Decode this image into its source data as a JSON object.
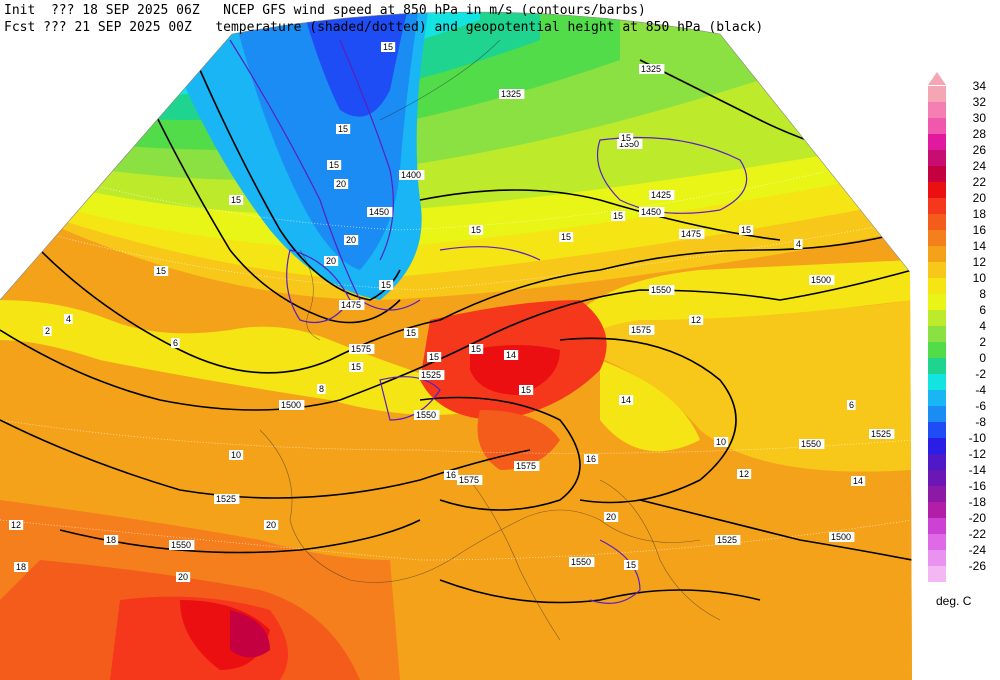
{
  "header": {
    "line1_left": "Init  ??? 18 SEP 2025 06Z",
    "line1_right": "NCEP GFS wind speed at 850 hPa in m/s (contours/barbs)",
    "line2_left": "Fcst ??? 21 SEP 2025 00Z",
    "line2_right": "temperature (shaded/dotted) and geopotential height at 850 hPa (black)"
  },
  "colorbar": {
    "units": "deg. C",
    "levels": [
      {
        "label": "34",
        "color": "#f4a6b4"
      },
      {
        "label": "32",
        "color": "#f57eb3"
      },
      {
        "label": "30",
        "color": "#ef58ad"
      },
      {
        "label": "28",
        "color": "#e0199f"
      },
      {
        "label": "26",
        "color": "#c70d6f"
      },
      {
        "label": "24",
        "color": "#c40040"
      },
      {
        "label": "22",
        "color": "#eb0f12"
      },
      {
        "label": "20",
        "color": "#f5381c"
      },
      {
        "label": "18",
        "color": "#f35c1a"
      },
      {
        "label": "16",
        "color": "#f47f1c"
      },
      {
        "label": "14",
        "color": "#f5a21b"
      },
      {
        "label": "12",
        "color": "#f7c719"
      },
      {
        "label": "10",
        "color": "#f6e514"
      },
      {
        "label": "8",
        "color": "#e8f516"
      },
      {
        "label": "6",
        "color": "#bdeb2b"
      },
      {
        "label": "4",
        "color": "#8be042"
      },
      {
        "label": "2",
        "color": "#52dc4a"
      },
      {
        "label": "0",
        "color": "#1fd48e"
      },
      {
        "label": "-2",
        "color": "#13e4e1"
      },
      {
        "label": "-4",
        "color": "#19b5f4"
      },
      {
        "label": "-6",
        "color": "#1a8cf4"
      },
      {
        "label": "-8",
        "color": "#1f4df5"
      },
      {
        "label": "-10",
        "color": "#2a1ee4"
      },
      {
        "label": "-12",
        "color": "#5019c7"
      },
      {
        "label": "-14",
        "color": "#6a17b5"
      },
      {
        "label": "-16",
        "color": "#8c1aa6"
      },
      {
        "label": "-18",
        "color": "#b21ea8"
      },
      {
        "label": "-20",
        "color": "#cc43d3"
      },
      {
        "label": "-22",
        "color": "#de6ae6"
      },
      {
        "label": "-24",
        "color": "#ea92ef"
      },
      {
        "label": "-26",
        "color": "#f3b8f4"
      }
    ]
  },
  "height_labels": [
    "1325",
    "1325",
    "1350",
    "1400",
    "1425",
    "1450",
    "1450",
    "1475",
    "1475",
    "1500",
    "1500",
    "1500",
    "1525",
    "1525",
    "1525",
    "1525",
    "1550",
    "1550",
    "1550",
    "1550",
    "1575",
    "1575",
    "1575",
    "1575",
    "1550"
  ],
  "wind_labels": [
    "15",
    "15",
    "15",
    "20",
    "15",
    "15",
    "15",
    "15",
    "15",
    "15",
    "20",
    "15",
    "15",
    "15",
    "15",
    "20",
    "15",
    "15",
    "15",
    "15",
    "20"
  ],
  "temp_labels": [
    "2",
    "4",
    "6",
    "8",
    "10",
    "12",
    "12",
    "14",
    "14",
    "16",
    "16",
    "18",
    "18",
    "20",
    "20",
    "10",
    "12",
    "14",
    "6",
    "4"
  ]
}
